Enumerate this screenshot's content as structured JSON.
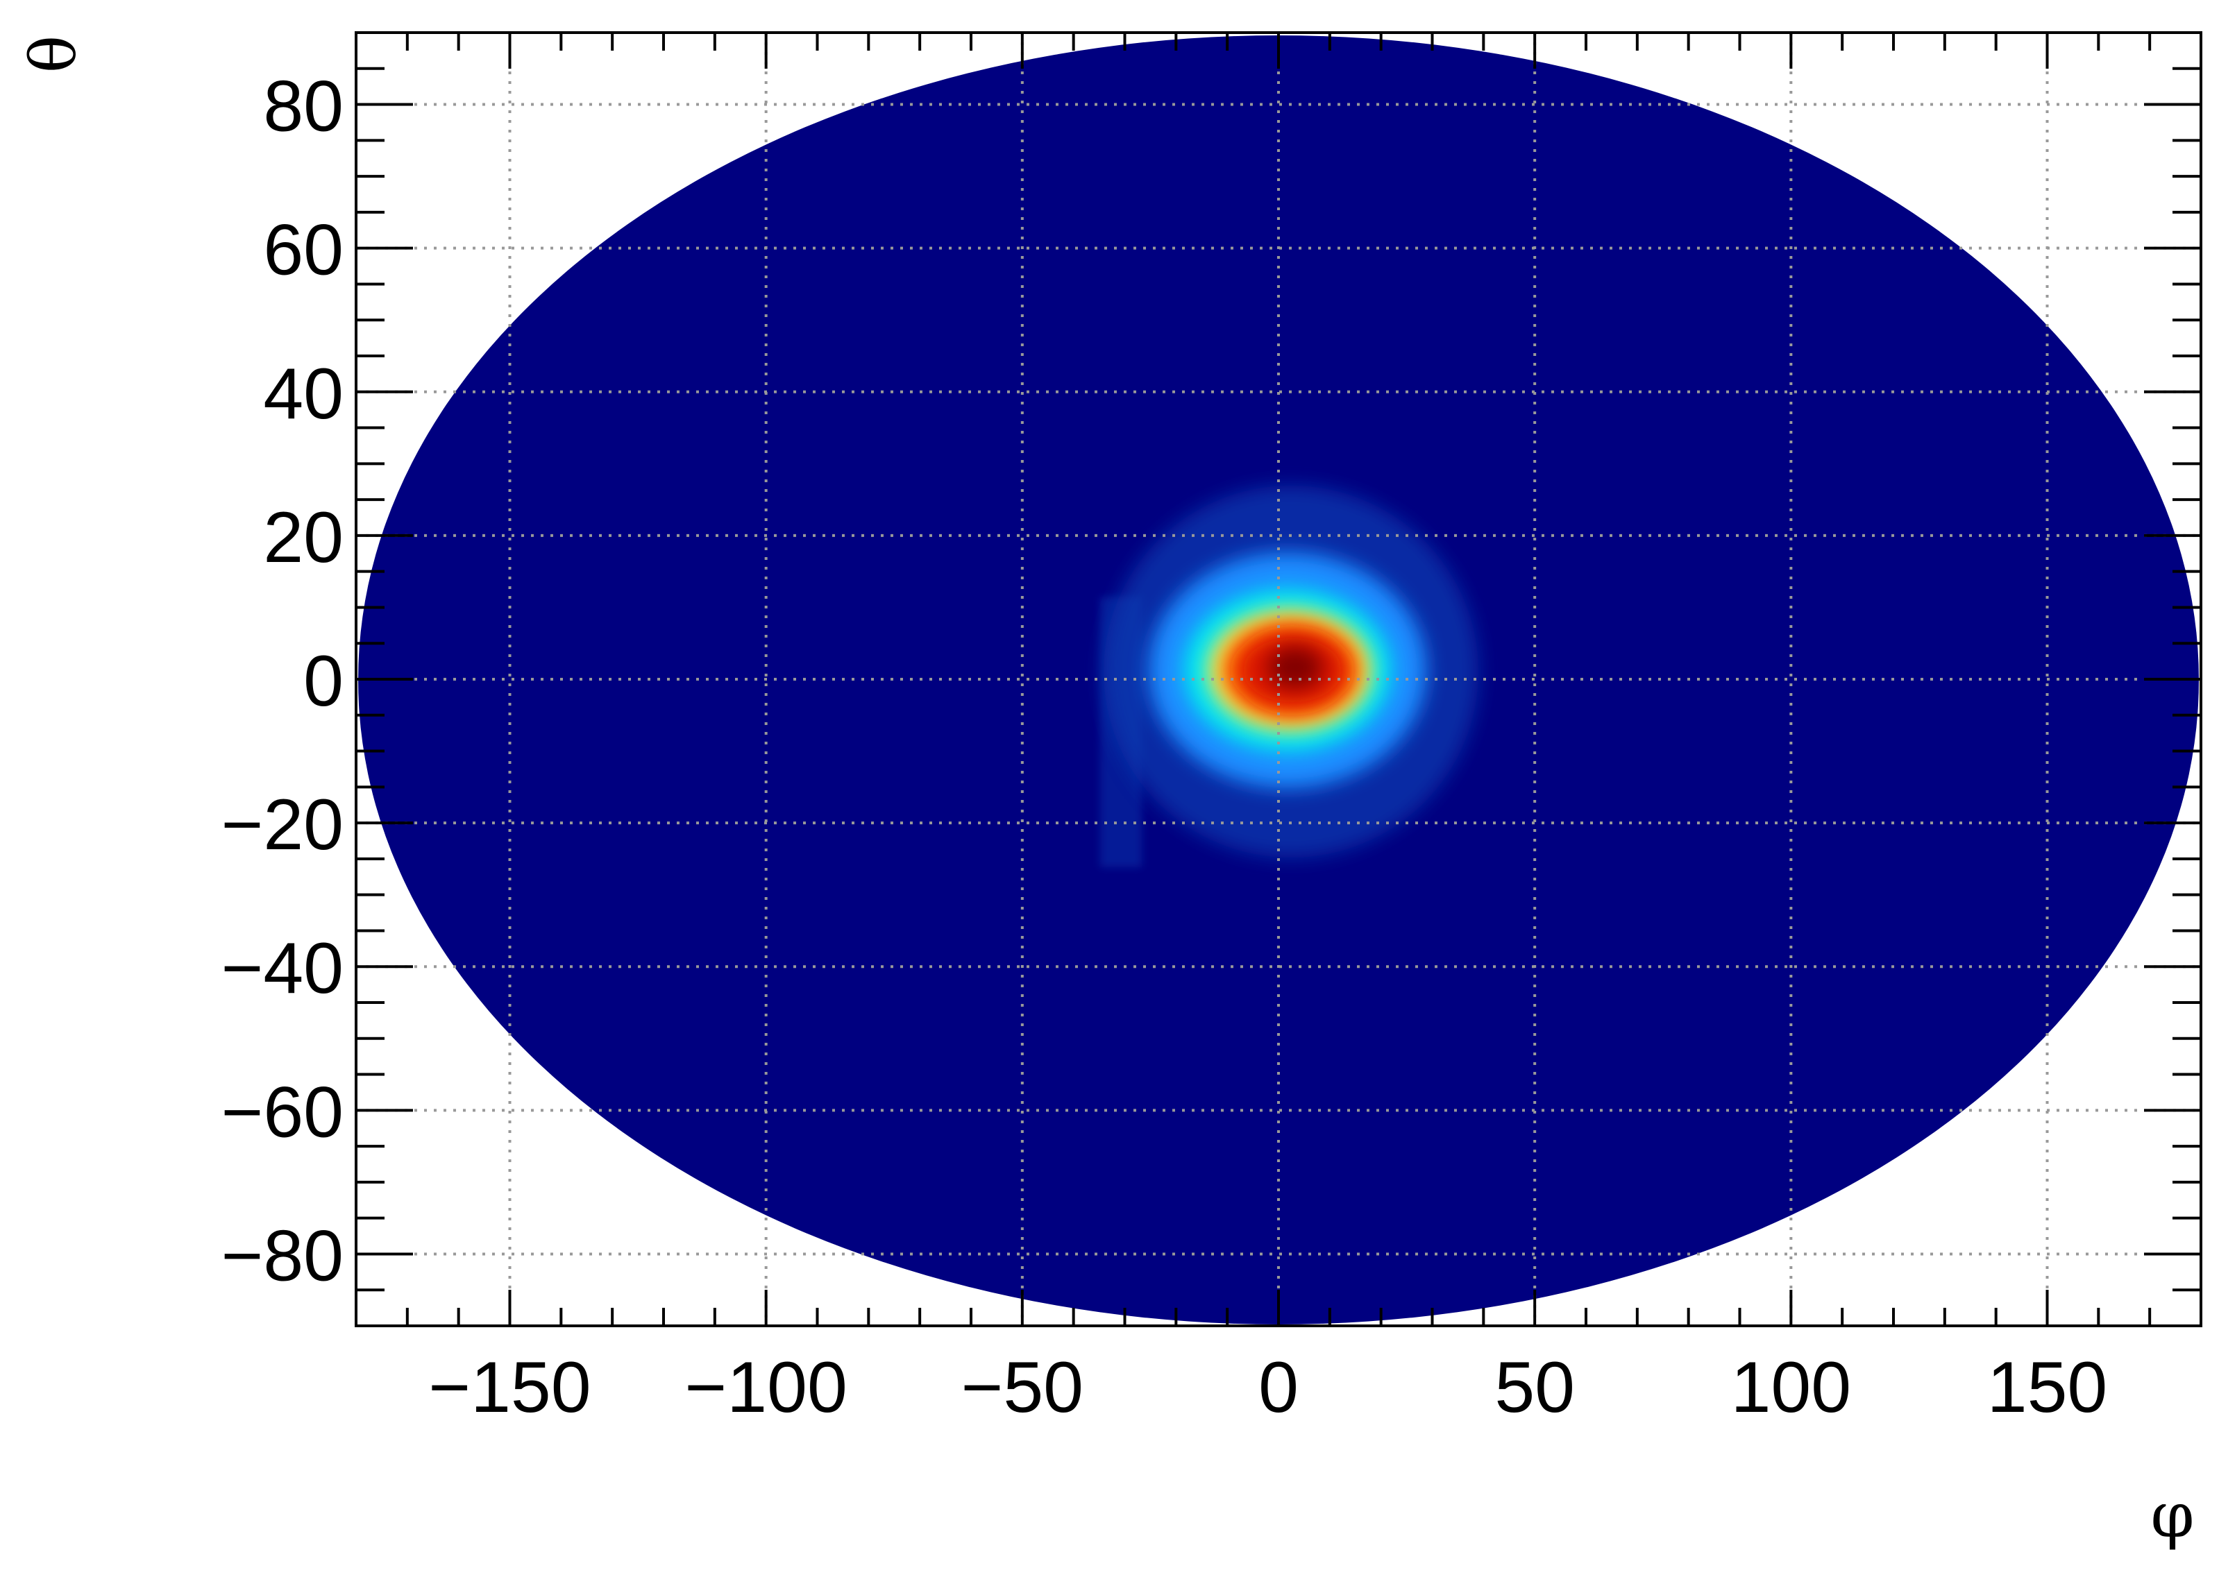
{
  "chart_data": {
    "type": "heatmap",
    "projection": "Hammer-Aitoff",
    "xlabel": "φ",
    "ylabel": "θ",
    "xlim": [
      -180,
      180
    ],
    "ylim": [
      -90,
      90
    ],
    "xticks": [
      -150,
      -100,
      -50,
      0,
      50,
      100,
      150
    ],
    "xtick_labels": [
      "−150",
      "−100",
      "−50",
      "0",
      "50",
      "100",
      "150"
    ],
    "yticks": [
      -80,
      -60,
      -40,
      -20,
      0,
      20,
      40,
      60,
      80
    ],
    "ytick_labels": [
      "−80",
      "−60",
      "−40",
      "−20",
      "0",
      "20",
      "40",
      "60",
      "80"
    ],
    "grid": true,
    "colormap": [
      "#000080",
      "#0a3cb4",
      "#1e8cff",
      "#00e6f0",
      "#f0f050",
      "#ff6400",
      "#dc1400",
      "#820000"
    ],
    "background_level_color": "#000080",
    "peak": {
      "phi": 2,
      "theta": 1
    },
    "hot_spot": {
      "phi_range": [
        -38,
        40
      ],
      "theta_range": [
        -26,
        28
      ]
    },
    "colors": {
      "grid": "#999999",
      "frame": "#000000"
    }
  }
}
